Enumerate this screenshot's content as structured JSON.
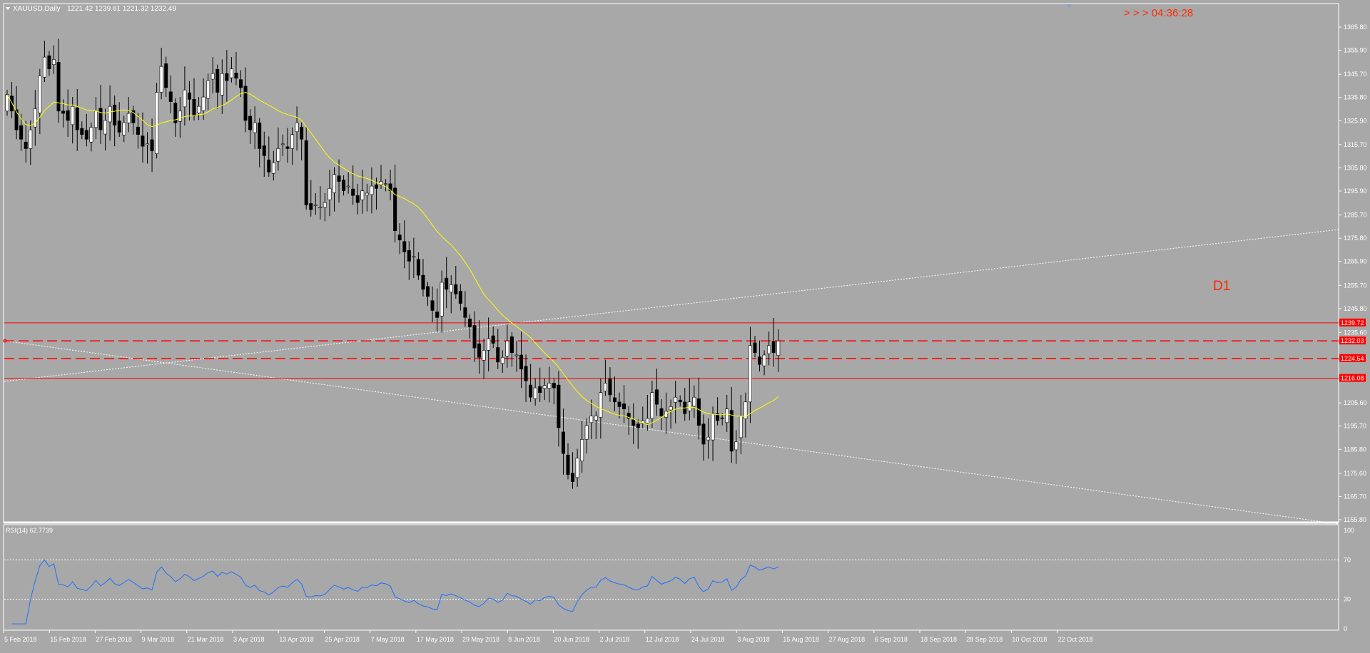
{
  "header": {
    "symbol": "XAUUSD,Daily",
    "ohlc": "1221.42 1239.61 1221.32 1232.49",
    "timer": "> > > 04:36:28",
    "timeframe_label": "D1"
  },
  "colors": {
    "background": "#a8a8a8",
    "bull_candle": "#ffffff",
    "bear_candle": "#000000",
    "ma_line": "#ffff00",
    "level_line": "#ff0000",
    "trendline": "#ffffff",
    "rsi_line": "#1e6fff",
    "timer_text": "#ff2a00"
  },
  "chart_data": [
    {
      "type": "candlestick",
      "title": "XAUUSD,Daily",
      "ylim": [
        1155.8,
        1369
      ],
      "price_axis_ticks": [
        "1365.80",
        "1355.90",
        "1345.70",
        "1335.80",
        "1325.90",
        "1315.70",
        "1305.80",
        "1295.90",
        "1285.70",
        "1275.80",
        "1265.90",
        "1255.70",
        "1245.80",
        "1235.60",
        "1195.70",
        "1205.60",
        "1185.80",
        "1175.60",
        "1165.70",
        "1155.80"
      ],
      "date_labels": [
        "5 Feb 2018",
        "15 Feb 2018",
        "27 Feb 2018",
        "9 Mar 2018",
        "21 Mar 2018",
        "3 Apr 2018",
        "13 Apr 2018",
        "25 Apr 2018",
        "7 May 2018",
        "17 May 2018",
        "29 May 2018",
        "8 Jun 2018",
        "20 Jun 2018",
        "2 Jul 2018",
        "12 Jul 2018",
        "24 Jul 2018",
        "3 Aug 2018",
        "15 Aug 2018",
        "27 Aug 2018",
        "6 Sep 2018",
        "18 Sep 2018",
        "28 Sep 2018",
        "10 Oct 2018",
        "22 Oct 2018"
      ],
      "horizontal_levels": [
        {
          "value": 1239.72,
          "label": "1239.72",
          "style": "solid"
        },
        {
          "value": 1232.03,
          "label": "1232.03",
          "style": "dashed"
        },
        {
          "value": 1224.54,
          "label": "1224.54",
          "style": "dashed"
        },
        {
          "value": 1216.08,
          "label": "1216.08",
          "style": "solid"
        }
      ],
      "moving_average_period_hint": "yellow MA",
      "closes": [
        1337,
        1330,
        1322,
        1318,
        1314,
        1322,
        1331,
        1345,
        1353,
        1348,
        1352,
        1330,
        1329,
        1326,
        1332,
        1322,
        1320,
        1318,
        1323,
        1330,
        1322,
        1326,
        1332,
        1324,
        1321,
        1325,
        1329,
        1325,
        1320,
        1315,
        1316,
        1313,
        1338,
        1349,
        1340,
        1334,
        1325,
        1330,
        1339,
        1335,
        1328,
        1332,
        1336,
        1343,
        1346,
        1338,
        1346,
        1343,
        1348,
        1344,
        1340,
        1326,
        1322,
        1325,
        1314,
        1311,
        1304,
        1308,
        1314,
        1316,
        1314,
        1320,
        1325,
        1318,
        1290,
        1288,
        1290,
        1289,
        1291,
        1297,
        1303,
        1300,
        1296,
        1298,
        1294,
        1291,
        1296,
        1295,
        1298,
        1297,
        1300,
        1299,
        1296,
        1279,
        1275,
        1270,
        1266,
        1268,
        1260,
        1254,
        1251,
        1245,
        1242,
        1257,
        1254,
        1256,
        1252,
        1248,
        1242,
        1238,
        1229,
        1225,
        1228,
        1233,
        1231,
        1223,
        1225,
        1232,
        1227,
        1226,
        1220,
        1215,
        1208,
        1212,
        1210,
        1213,
        1214,
        1212,
        1195,
        1184,
        1175,
        1172,
        1182,
        1190,
        1196,
        1200,
        1200,
        1210,
        1214,
        1209,
        1206,
        1204,
        1203,
        1199,
        1196,
        1195,
        1198,
        1199,
        1210,
        1205,
        1200,
        1202,
        1204,
        1208,
        1206,
        1201,
        1206,
        1208,
        1196,
        1188,
        1191,
        1201,
        1198,
        1199,
        1203,
        1185,
        1189,
        1200,
        1206,
        1230,
        1227,
        1222,
        1226,
        1230,
        1227,
        1232
      ],
      "rsi": {
        "label": "RSI(14) 62.7739",
        "levels": [
          70,
          30
        ],
        "ylim": [
          0,
          100
        ],
        "ticks": [
          "100",
          "70",
          "30",
          "0"
        ]
      }
    }
  ]
}
